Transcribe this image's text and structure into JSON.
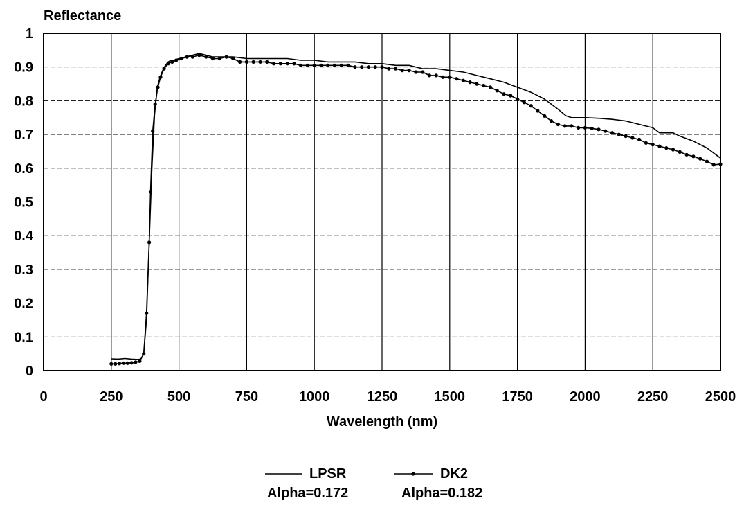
{
  "chart_data": {
    "type": "line",
    "title": "",
    "ylabel": "Reflectance",
    "xlabel": "Wavelength (nm)",
    "xlim": [
      0,
      2500
    ],
    "ylim": [
      0,
      1
    ],
    "x_ticks": [
      0,
      250,
      500,
      750,
      1000,
      1250,
      1500,
      1750,
      2000,
      2250,
      2500
    ],
    "x_tick_labels": [
      "0",
      "250",
      "500",
      "750",
      "1000",
      "1250",
      "1500",
      "1750",
      "2000",
      "2250",
      "2500"
    ],
    "y_ticks": [
      0,
      0.1,
      0.2,
      0.3,
      0.4,
      0.5,
      0.6,
      0.7,
      0.8,
      0.9,
      1
    ],
    "y_tick_labels": [
      "0",
      "0.1",
      "0.2",
      "0.3",
      "0.4",
      "0.5",
      "0.6",
      "0.7",
      "0.8",
      "0.9",
      "1"
    ],
    "grid": true,
    "legend_position": "bottom-center",
    "series": [
      {
        "name": "LPSR",
        "alpha_label": "Alpha=0.172",
        "marker": "none",
        "color": "#000000",
        "points": [
          [
            250,
            0.035
          ],
          [
            275,
            0.034
          ],
          [
            300,
            0.036
          ],
          [
            325,
            0.034
          ],
          [
            350,
            0.033
          ],
          [
            360,
            0.035
          ],
          [
            370,
            0.05
          ],
          [
            380,
            0.15
          ],
          [
            390,
            0.38
          ],
          [
            400,
            0.6
          ],
          [
            410,
            0.76
          ],
          [
            420,
            0.84
          ],
          [
            430,
            0.87
          ],
          [
            440,
            0.89
          ],
          [
            450,
            0.905
          ],
          [
            460,
            0.915
          ],
          [
            470,
            0.92
          ],
          [
            480,
            0.92
          ],
          [
            500,
            0.925
          ],
          [
            525,
            0.93
          ],
          [
            550,
            0.935
          ],
          [
            575,
            0.94
          ],
          [
            600,
            0.935
          ],
          [
            625,
            0.93
          ],
          [
            650,
            0.93
          ],
          [
            700,
            0.93
          ],
          [
            750,
            0.925
          ],
          [
            800,
            0.925
          ],
          [
            850,
            0.925
          ],
          [
            900,
            0.925
          ],
          [
            950,
            0.92
          ],
          [
            1000,
            0.92
          ],
          [
            1050,
            0.915
          ],
          [
            1100,
            0.915
          ],
          [
            1150,
            0.915
          ],
          [
            1200,
            0.91
          ],
          [
            1250,
            0.91
          ],
          [
            1300,
            0.905
          ],
          [
            1350,
            0.905
          ],
          [
            1400,
            0.895
          ],
          [
            1450,
            0.895
          ],
          [
            1500,
            0.89
          ],
          [
            1550,
            0.885
          ],
          [
            1600,
            0.875
          ],
          [
            1650,
            0.865
          ],
          [
            1700,
            0.855
          ],
          [
            1750,
            0.84
          ],
          [
            1800,
            0.825
          ],
          [
            1850,
            0.805
          ],
          [
            1900,
            0.775
          ],
          [
            1930,
            0.755
          ],
          [
            1950,
            0.75
          ],
          [
            2000,
            0.75
          ],
          [
            2050,
            0.748
          ],
          [
            2100,
            0.745
          ],
          [
            2150,
            0.74
          ],
          [
            2200,
            0.73
          ],
          [
            2250,
            0.72
          ],
          [
            2275,
            0.705
          ],
          [
            2300,
            0.705
          ],
          [
            2325,
            0.705
          ],
          [
            2350,
            0.695
          ],
          [
            2400,
            0.68
          ],
          [
            2450,
            0.66
          ],
          [
            2500,
            0.63
          ]
        ]
      },
      {
        "name": "DK2",
        "alpha_label": "Alpha=0.182",
        "marker": "dot",
        "color": "#000000",
        "points": [
          [
            250,
            0.02
          ],
          [
            265,
            0.02
          ],
          [
            280,
            0.021
          ],
          [
            295,
            0.022
          ],
          [
            310,
            0.022
          ],
          [
            325,
            0.023
          ],
          [
            340,
            0.025
          ],
          [
            355,
            0.028
          ],
          [
            370,
            0.05
          ],
          [
            380,
            0.17
          ],
          [
            390,
            0.38
          ],
          [
            395,
            0.53
          ],
          [
            403,
            0.71
          ],
          [
            412,
            0.79
          ],
          [
            422,
            0.84
          ],
          [
            432,
            0.87
          ],
          [
            445,
            0.895
          ],
          [
            460,
            0.91
          ],
          [
            475,
            0.915
          ],
          [
            490,
            0.92
          ],
          [
            510,
            0.925
          ],
          [
            530,
            0.93
          ],
          [
            550,
            0.93
          ],
          [
            575,
            0.935
          ],
          [
            600,
            0.93
          ],
          [
            625,
            0.925
          ],
          [
            650,
            0.925
          ],
          [
            675,
            0.93
          ],
          [
            700,
            0.925
          ],
          [
            725,
            0.915
          ],
          [
            750,
            0.915
          ],
          [
            775,
            0.915
          ],
          [
            800,
            0.915
          ],
          [
            825,
            0.915
          ],
          [
            850,
            0.91
          ],
          [
            875,
            0.91
          ],
          [
            900,
            0.91
          ],
          [
            925,
            0.91
          ],
          [
            950,
            0.905
          ],
          [
            975,
            0.905
          ],
          [
            1000,
            0.905
          ],
          [
            1025,
            0.905
          ],
          [
            1050,
            0.905
          ],
          [
            1075,
            0.905
          ],
          [
            1100,
            0.905
          ],
          [
            1125,
            0.905
          ],
          [
            1150,
            0.9
          ],
          [
            1175,
            0.9
          ],
          [
            1200,
            0.9
          ],
          [
            1225,
            0.9
          ],
          [
            1250,
            0.9
          ],
          [
            1275,
            0.895
          ],
          [
            1300,
            0.895
          ],
          [
            1325,
            0.89
          ],
          [
            1350,
            0.89
          ],
          [
            1375,
            0.885
          ],
          [
            1400,
            0.885
          ],
          [
            1425,
            0.875
          ],
          [
            1450,
            0.875
          ],
          [
            1475,
            0.87
          ],
          [
            1500,
            0.87
          ],
          [
            1525,
            0.865
          ],
          [
            1550,
            0.86
          ],
          [
            1575,
            0.855
          ],
          [
            1600,
            0.85
          ],
          [
            1625,
            0.845
          ],
          [
            1650,
            0.84
          ],
          [
            1675,
            0.83
          ],
          [
            1700,
            0.82
          ],
          [
            1725,
            0.815
          ],
          [
            1750,
            0.805
          ],
          [
            1775,
            0.795
          ],
          [
            1800,
            0.785
          ],
          [
            1825,
            0.77
          ],
          [
            1850,
            0.755
          ],
          [
            1875,
            0.74
          ],
          [
            1900,
            0.73
          ],
          [
            1925,
            0.725
          ],
          [
            1950,
            0.725
          ],
          [
            1975,
            0.72
          ],
          [
            2000,
            0.72
          ],
          [
            2025,
            0.718
          ],
          [
            2050,
            0.715
          ],
          [
            2075,
            0.71
          ],
          [
            2100,
            0.705
          ],
          [
            2125,
            0.7
          ],
          [
            2150,
            0.695
          ],
          [
            2175,
            0.69
          ],
          [
            2200,
            0.685
          ],
          [
            2225,
            0.675
          ],
          [
            2250,
            0.67
          ],
          [
            2275,
            0.665
          ],
          [
            2300,
            0.66
          ],
          [
            2325,
            0.655
          ],
          [
            2350,
            0.648
          ],
          [
            2375,
            0.64
          ],
          [
            2400,
            0.635
          ],
          [
            2425,
            0.628
          ],
          [
            2450,
            0.62
          ],
          [
            2475,
            0.61
          ],
          [
            2500,
            0.612
          ]
        ]
      }
    ]
  }
}
